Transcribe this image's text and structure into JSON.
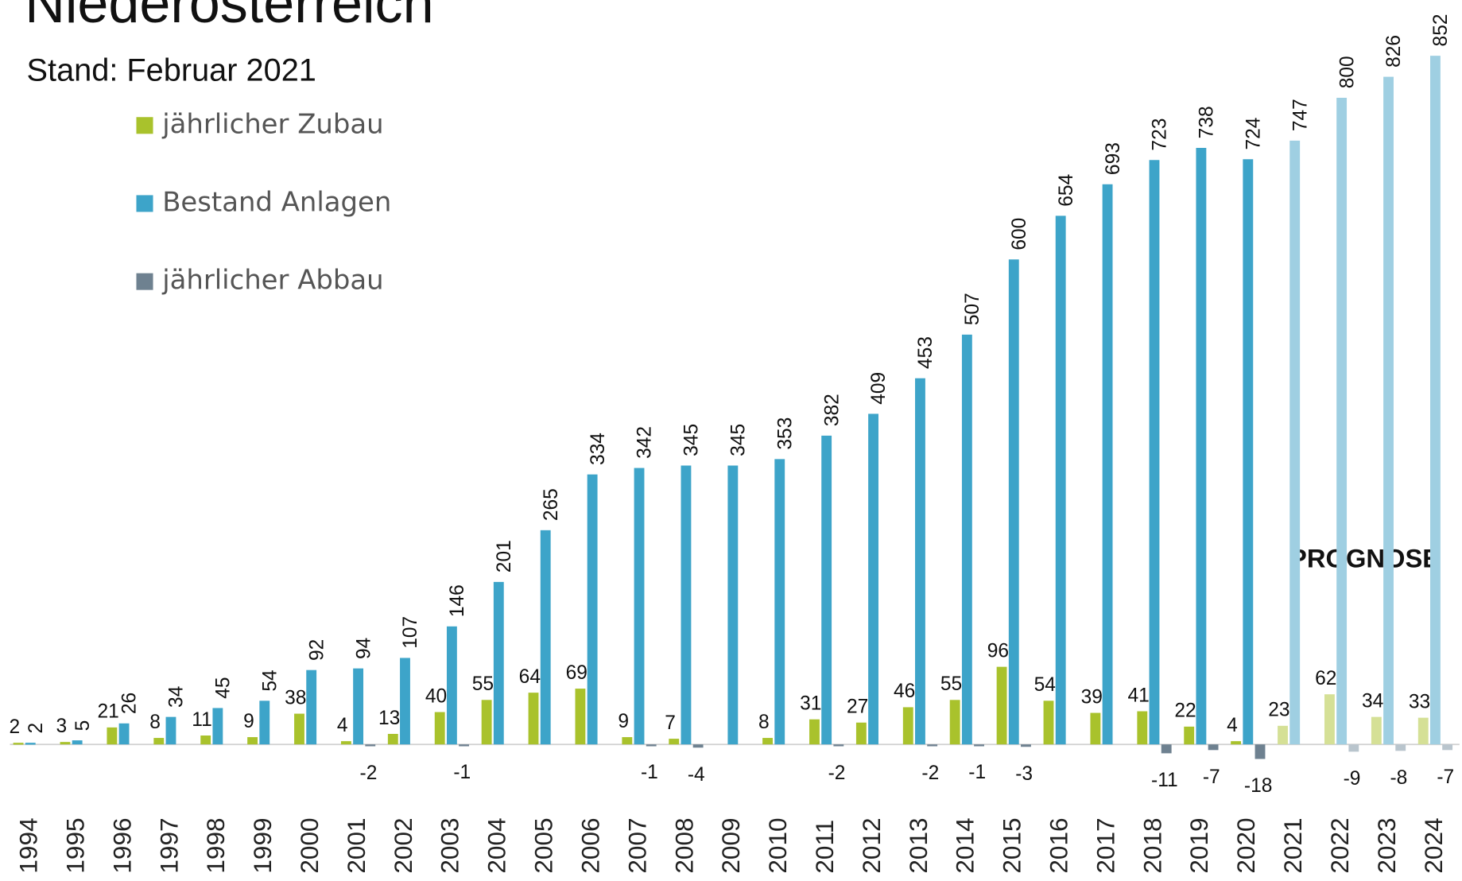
{
  "chart_data": {
    "type": "bar",
    "title": "Niederösterreich",
    "subtitle": "Stand: Februar 2021",
    "annotation": "PROGNOSE",
    "categories": [
      "1994",
      "1995",
      "1996",
      "1997",
      "1998",
      "1999",
      "2000",
      "2001",
      "2002",
      "2003",
      "2004",
      "2005",
      "2006",
      "2007",
      "2008",
      "2009",
      "2010",
      "2011",
      "2012",
      "2013",
      "2014",
      "2015",
      "2016",
      "2017",
      "2018",
      "2019",
      "2020",
      "2021",
      "2022",
      "2023",
      "2024"
    ],
    "forecast_start": "2021",
    "ylim": [
      -40,
      852
    ],
    "series": [
      {
        "name": "jährlicher Zubau",
        "color": "#a9c22c",
        "forecast_color": "#d5e096",
        "values": [
          2,
          3,
          21,
          8,
          11,
          9,
          38,
          4,
          13,
          40,
          55,
          64,
          69,
          9,
          7,
          null,
          8,
          31,
          27,
          46,
          55,
          96,
          54,
          39,
          41,
          22,
          4,
          23,
          62,
          34,
          33
        ]
      },
      {
        "name": "Bestand Anlagen",
        "color": "#3da4c9",
        "forecast_color": "#9fcfe2",
        "values": [
          2,
          5,
          26,
          34,
          45,
          54,
          92,
          94,
          107,
          146,
          201,
          265,
          334,
          342,
          345,
          345,
          353,
          382,
          409,
          453,
          507,
          600,
          654,
          693,
          723,
          738,
          724,
          747,
          800,
          826,
          852
        ]
      },
      {
        "name": "jährlicher Abbau",
        "color": "#6e8190",
        "forecast_color": "#b9c5cd",
        "values": [
          null,
          null,
          null,
          null,
          null,
          null,
          null,
          -2,
          null,
          -1,
          null,
          null,
          null,
          -1,
          -4,
          null,
          null,
          -2,
          null,
          -2,
          -1,
          -3,
          null,
          null,
          -11,
          -7,
          -18,
          null,
          -9,
          -8,
          -7
        ]
      }
    ]
  }
}
